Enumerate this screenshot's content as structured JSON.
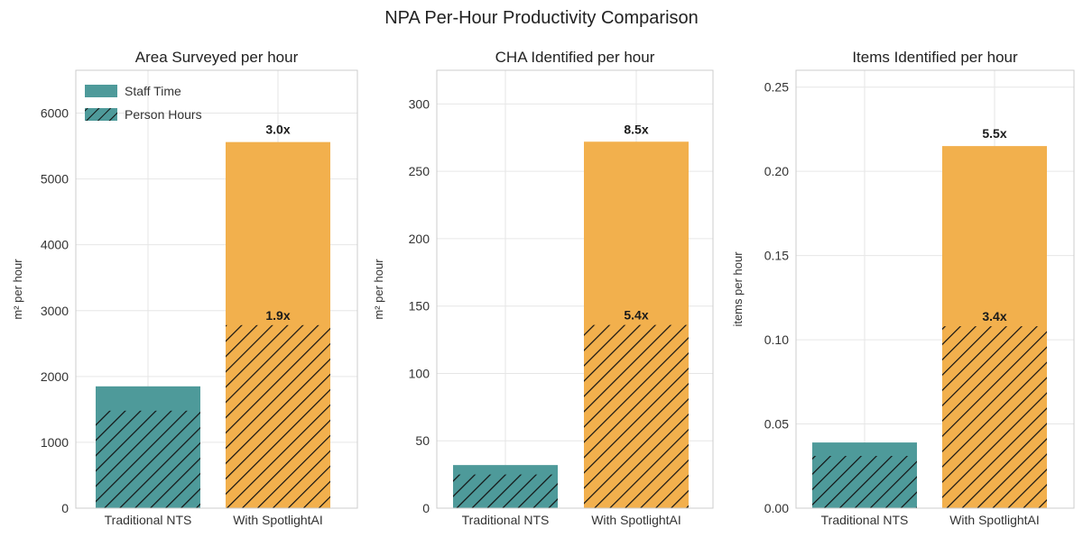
{
  "title": "NPA Per-Hour Productivity Comparison",
  "colors": {
    "traditional": "#4e9a9a",
    "spotlight": "#f2b04d",
    "hatch": "#111111"
  },
  "legend": {
    "position": "upper-left of first panel",
    "entries": [
      {
        "label": "Staff Time",
        "style": "solid"
      },
      {
        "label": "Person Hours",
        "style": "hatched"
      }
    ]
  },
  "chart_data": [
    {
      "type": "bar",
      "title": "Area Surveyed per hour",
      "ylabel": "m² per hour",
      "categories": [
        "Traditional NTS",
        "With SpotlightAI"
      ],
      "ylim": [
        0,
        6650
      ],
      "yticks": [
        0,
        1000,
        2000,
        3000,
        4000,
        5000,
        6000
      ],
      "tick_labels": [
        "0",
        "1000",
        "2000",
        "3000",
        "4000",
        "5000",
        "6000"
      ],
      "grid": true,
      "series": [
        {
          "name": "Staff Time",
          "values": [
            1850,
            5560
          ]
        },
        {
          "name": "Person Hours",
          "values": [
            1480,
            2780
          ]
        }
      ],
      "annotations": {
        "Staff Time": [
          "",
          "3.0x"
        ],
        "Person Hours": [
          "",
          "1.9x"
        ]
      }
    },
    {
      "type": "bar",
      "title": "CHA Identified per hour",
      "ylabel": "m² per hour",
      "categories": [
        "Traditional NTS",
        "With SpotlightAI"
      ],
      "ylim": [
        0,
        325
      ],
      "yticks": [
        0,
        50,
        100,
        150,
        200,
        250,
        300
      ],
      "tick_labels": [
        "0",
        "50",
        "100",
        "150",
        "200",
        "250",
        "300"
      ],
      "grid": true,
      "series": [
        {
          "name": "Staff Time",
          "values": [
            32,
            272
          ]
        },
        {
          "name": "Person Hours",
          "values": [
            25,
            136
          ]
        }
      ],
      "annotations": {
        "Staff Time": [
          "",
          "8.5x"
        ],
        "Person Hours": [
          "",
          "5.4x"
        ]
      }
    },
    {
      "type": "bar",
      "title": "Items Identified per hour",
      "ylabel": "items per hour",
      "categories": [
        "Traditional NTS",
        "With SpotlightAI"
      ],
      "ylim": [
        0,
        0.26
      ],
      "yticks": [
        0,
        0.05,
        0.1,
        0.15,
        0.2,
        0.25
      ],
      "tick_labels": [
        "0.00",
        "0.05",
        "0.10",
        "0.15",
        "0.20",
        "0.25"
      ],
      "grid": true,
      "series": [
        {
          "name": "Staff Time",
          "values": [
            0.039,
            0.215
          ]
        },
        {
          "name": "Person Hours",
          "values": [
            0.031,
            0.108
          ]
        }
      ],
      "annotations": {
        "Staff Time": [
          "",
          "5.5x"
        ],
        "Person Hours": [
          "",
          "3.4x"
        ]
      }
    }
  ]
}
